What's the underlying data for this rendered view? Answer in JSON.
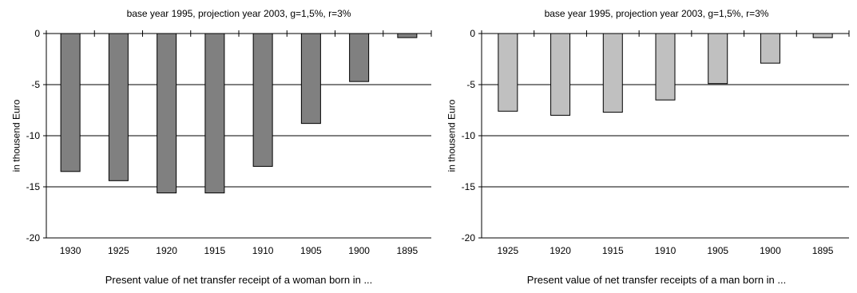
{
  "chart_data": [
    {
      "type": "bar",
      "title": "base year 1995, projection year 2003, g=1,5%, r=3%",
      "xlabel": "Present value of net transfer receipt of a woman born in ...",
      "ylabel": "in thousend Euro",
      "categories": [
        "1930",
        "1925",
        "1920",
        "1915",
        "1910",
        "1905",
        "1900",
        "1895"
      ],
      "values": [
        -13.5,
        -14.4,
        -15.6,
        -15.6,
        -13.0,
        -8.8,
        -4.7,
        -0.4
      ],
      "ylim": [
        -20,
        0
      ],
      "yticks": [
        0,
        -5,
        -10,
        -15,
        -20
      ],
      "grid": true,
      "bar_color": "#808080"
    },
    {
      "type": "bar",
      "title": "base year 1995, projection year 2003, g=1,5%, r=3%",
      "xlabel": "Present value of net transfer receipts of a man born in ...",
      "ylabel": "in thousend Euro",
      "categories": [
        "1925",
        "1920",
        "1915",
        "1910",
        "1905",
        "1900",
        "1895"
      ],
      "values": [
        -7.6,
        -8.0,
        -7.7,
        -6.5,
        -4.9,
        -2.9,
        -0.4
      ],
      "ylim": [
        -20,
        0
      ],
      "yticks": [
        0,
        -5,
        -10,
        -15,
        -20
      ],
      "grid": true,
      "bar_color": "#c0c0c0"
    }
  ]
}
